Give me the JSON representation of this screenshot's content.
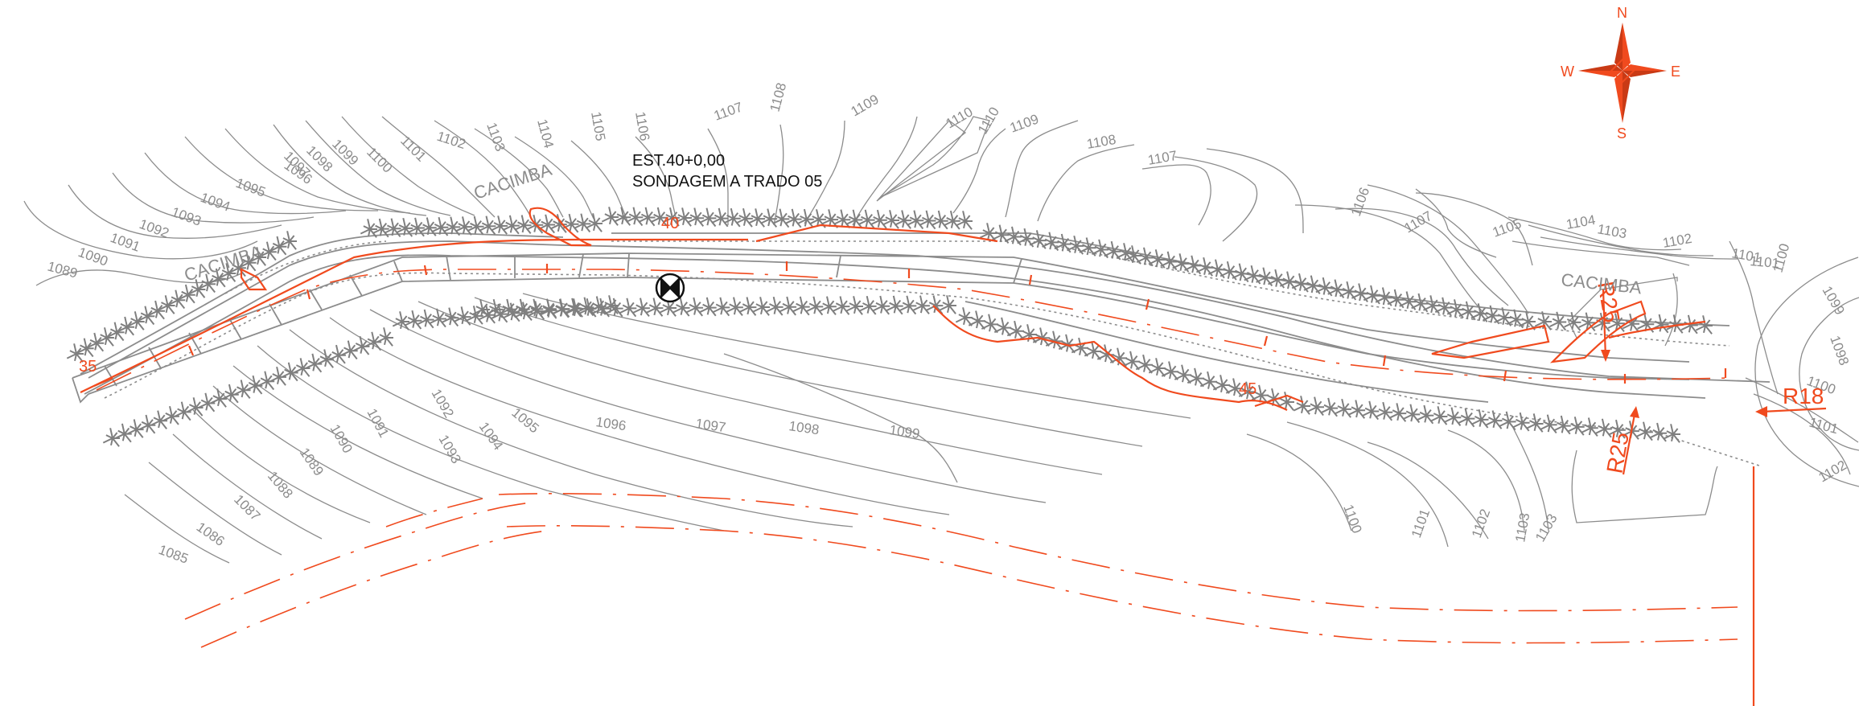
{
  "station_label": "EST.40+0,00",
  "survey_label": "SONDAGEM A TRADO 05",
  "place_name_1": "CACIMBA",
  "place_name_2": "CACIMBA",
  "place_name_3": "CACIMBA",
  "stations": {
    "s35": "35",
    "s40": "40",
    "s45": "45"
  },
  "radii": {
    "r25_top": "R25",
    "r25_bottom": "R25",
    "r18": "R18"
  },
  "compass": {
    "n": "N",
    "e": "E",
    "s": "S",
    "w": "W"
  },
  "contours_upper": [
    "1089",
    "1090",
    "1091",
    "1092",
    "1093",
    "1094",
    "1095",
    "1096",
    "1097",
    "1098",
    "1099",
    "1100",
    "1101",
    "1102",
    "1103",
    "1104",
    "1105",
    "1106",
    "1107",
    "1108",
    "1109",
    "1110",
    "1110",
    "1109",
    "1108",
    "1107",
    "1107",
    "1106",
    "1105",
    "1104",
    "1103",
    "1102",
    "1101",
    "1101",
    "1100",
    "1099",
    "1098"
  ],
  "contours_lower": [
    "1085",
    "1086",
    "1087",
    "1088",
    "1089",
    "1090",
    "1091",
    "1092",
    "1093",
    "1094",
    "1095",
    "1096",
    "1097",
    "1098",
    "1099",
    "1100",
    "1101",
    "1102",
    "1103",
    "1103",
    "1100",
    "1101",
    "1102"
  ],
  "colors": {
    "design": "#f04a1e",
    "terrain": "#8c8c8c",
    "text": "#111111"
  }
}
